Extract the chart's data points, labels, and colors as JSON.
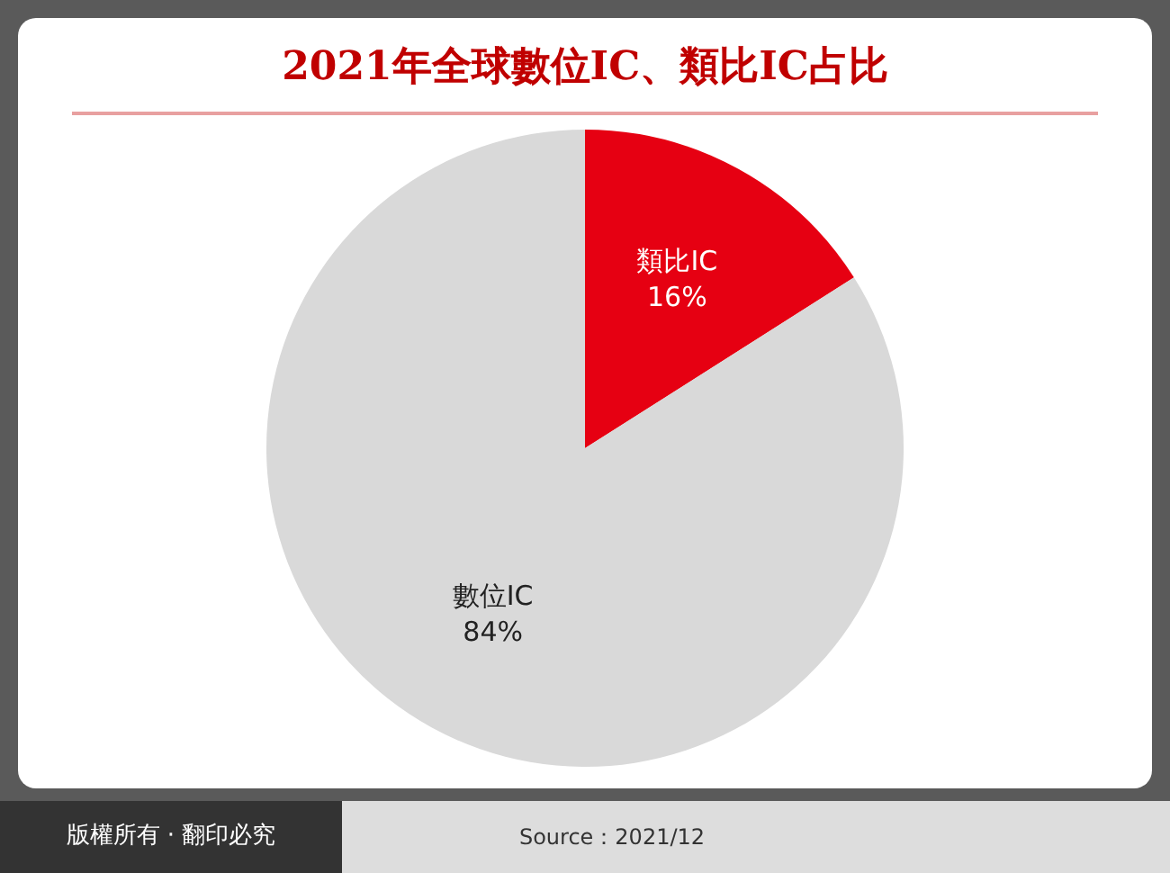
{
  "chart_data": {
    "type": "pie",
    "title": "2021年全球數位IC、類比IC占比",
    "categories": [
      "類比IC",
      "數位IC"
    ],
    "values": [
      16,
      84
    ],
    "colors": [
      "#e60012",
      "#d9d9d9"
    ],
    "value_labels": [
      "16%",
      "84%"
    ],
    "legend": false,
    "annotations": [
      "版權所有 · 翻印必究",
      "Source：2021/12"
    ]
  }
}
